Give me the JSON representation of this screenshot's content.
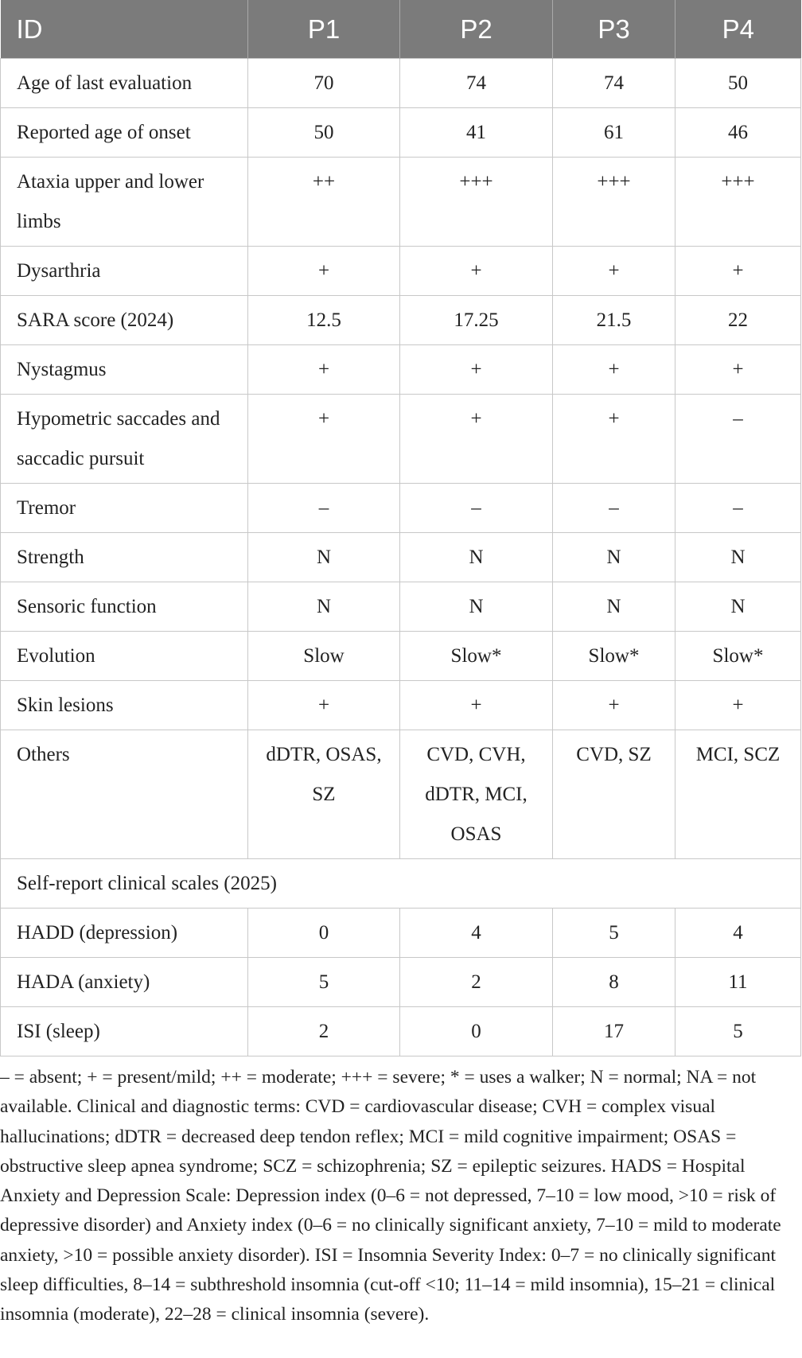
{
  "table": {
    "header": [
      "ID",
      "P1",
      "P2",
      "P3",
      "P4"
    ],
    "rows": [
      [
        "Age of last evaluation",
        "70",
        "74",
        "74",
        "50"
      ],
      [
        "Reported age of onset",
        "50",
        "41",
        "61",
        "46"
      ],
      [
        "Ataxia upper and lower limbs",
        "++",
        "+++",
        "+++",
        "+++"
      ],
      [
        "Dysarthria",
        "+",
        "+",
        "+",
        "+"
      ],
      [
        "SARA score (2024)",
        "12.5",
        "17.25",
        "21.5",
        "22"
      ],
      [
        "Nystagmus",
        "+",
        "+",
        "+",
        "+"
      ],
      [
        "Hypometric saccades and saccadic pursuit",
        "+",
        "+",
        "+",
        "–"
      ],
      [
        "Tremor",
        "–",
        "–",
        "–",
        "–"
      ],
      [
        "Strength",
        "N",
        "N",
        "N",
        "N"
      ],
      [
        "Sensoric function",
        "N",
        "N",
        "N",
        "N"
      ],
      [
        "Evolution",
        "Slow",
        "Slow*",
        "Slow*",
        "Slow*"
      ],
      [
        "Skin lesions",
        "+",
        "+",
        "+",
        "+"
      ],
      [
        "Others",
        "dDTR, OSAS, SZ",
        "CVD, CVH, dDTR, MCI, OSAS",
        "CVD, SZ",
        "MCI, SCZ"
      ],
      [
        "Self-report clinical scales (2025)"
      ],
      [
        "HADD (depression)",
        "0",
        "4",
        "5",
        "4"
      ],
      [
        "HADA (anxiety)",
        "5",
        "2",
        "8",
        "11"
      ],
      [
        "ISI (sleep)",
        "2",
        "0",
        "17",
        "5"
      ]
    ],
    "footnote": "– = absent; + = present/mild; ++ = moderate; +++ = severe; * = uses a walker; N = normal; NA = not available. Clinical and diagnostic terms: CVD = cardiovascular disease; CVH = complex visual hallucinations; dDTR = decreased deep tendon reflex; MCI = mild cognitive impairment; OSAS = obstructive sleep apnea syndrome; SCZ = schizophrenia; SZ = epileptic seizures. HADS = Hospital Anxiety and Depression Scale: Depression index (0–6 = not depressed, 7–10 = low mood, >10 = risk of depressive disorder) and Anxiety index (0–6 = no clinically significant anxiety, 7–10 = mild to moderate anxiety, >10 = possible anxiety disorder). ISI = Insomnia Severity Index: 0–7 = no clinically significant sleep difficulties, 8–14 = subthreshold insomnia (cut-off <10; 11–14 = mild insomnia), 15–21 = clinical insomnia (moderate), 22–28 = clinical insomnia (severe)."
  }
}
